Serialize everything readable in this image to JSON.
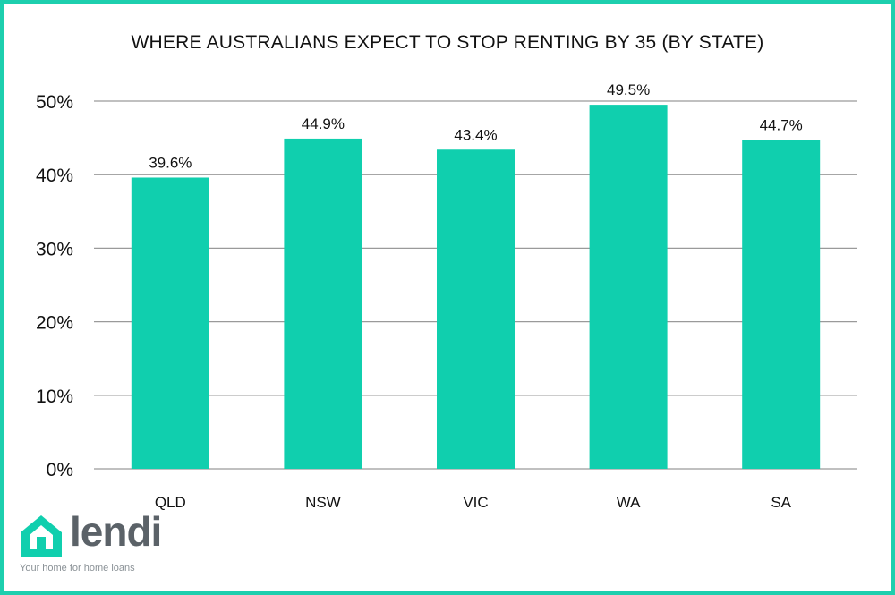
{
  "title": "WHERE AUSTRALIANS EXPECT TO STOP RENTING BY 35 (BY STATE)",
  "colors": {
    "bar": "#10cfae",
    "frame": "#1dcfae",
    "grid": "#9a9a9a",
    "logo_house": "#10cfae",
    "logo_text": "#5b6268"
  },
  "logo": {
    "wordmark": "lendi",
    "tagline": "Your home for home loans"
  },
  "chart_data": {
    "type": "bar",
    "title": "WHERE AUSTRALIANS EXPECT TO STOP RENTING BY 35 (BY STATE)",
    "categories": [
      "QLD",
      "NSW",
      "VIC",
      "WA",
      "SA"
    ],
    "values": [
      39.6,
      44.9,
      43.4,
      49.5,
      44.7
    ],
    "data_labels": [
      "39.6%",
      "44.9%",
      "43.4%",
      "49.5%",
      "44.7%"
    ],
    "y_ticks": [
      0,
      10,
      20,
      30,
      40,
      50
    ],
    "y_tick_labels": [
      "0%",
      "10%",
      "20%",
      "30%",
      "40%",
      "50%"
    ],
    "ylim": [
      0,
      50
    ],
    "xlabel": "",
    "ylabel": "",
    "grid": true,
    "legend": "none"
  }
}
